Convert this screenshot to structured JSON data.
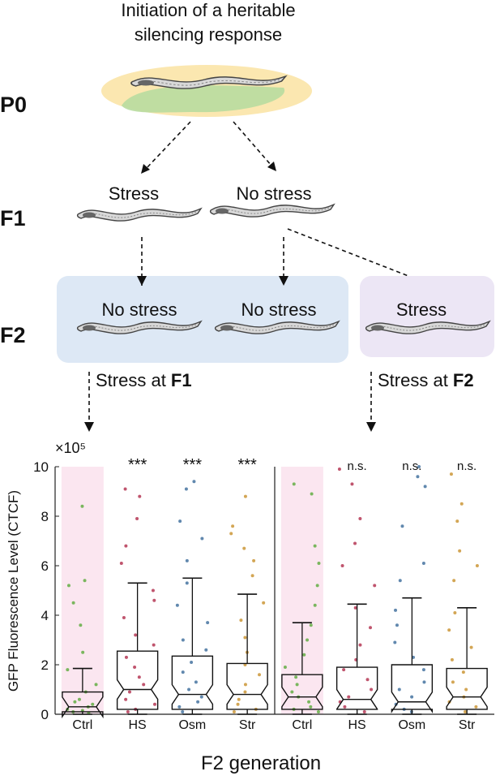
{
  "diagram": {
    "title_lines": [
      "Initiation of a heritable",
      "silencing response"
    ],
    "generations": [
      "P0",
      "F1",
      "F2"
    ],
    "f1_conditions": [
      "Stress",
      "No stress"
    ],
    "f2_conditions": [
      "No stress",
      "No stress",
      "Stress"
    ],
    "outcomes": [
      {
        "text": "Stress at ",
        "bold": "F1"
      },
      {
        "text": "Stress at ",
        "bold": "F2"
      }
    ]
  },
  "chart_data": {
    "type": "box",
    "ylabel": "GFP Fluorescence Level (CTCF)",
    "xlabel": "F2 generation",
    "y_multiplier_label": "×10⁵",
    "ylim": [
      0,
      10
    ],
    "yticks": [
      0,
      2,
      4,
      6,
      8,
      10
    ],
    "categories": [
      "Ctrl",
      "HS",
      "Osm",
      "Str",
      "Ctrl",
      "HS",
      "Osm",
      "Str"
    ],
    "annotations": [
      null,
      "***",
      "***",
      "***",
      null,
      "n.s.",
      "n.s.",
      "n.s."
    ],
    "highlight_categories": [
      0,
      4
    ],
    "highlight_color": "#fbe6f0",
    "separator_after": 3,
    "boxes": [
      {
        "color": "#5aaa3a",
        "whisker_low": 0,
        "q1": 0.1,
        "median": 0.3,
        "q3": 0.9,
        "whisker_high": 1.85,
        "points": [
          8.4,
          5.4,
          5.2,
          4.5,
          3.6,
          2.5,
          1.8,
          1.2,
          0.9,
          0.6,
          0.5,
          0.4,
          0.3,
          0.2,
          0.15,
          0.1,
          0.05
        ]
      },
      {
        "color": "#b02a4a",
        "whisker_low": 0,
        "q1": 0.2,
        "median": 1.0,
        "q3": 2.55,
        "whisker_high": 5.3,
        "points": [
          9.1,
          8.8,
          7.9,
          6.8,
          6.1,
          5.0,
          4.6,
          3.9,
          3.2,
          2.8,
          2.3,
          1.9,
          1.5,
          1.2,
          0.9,
          0.6,
          0.4,
          0.2,
          0.1
        ]
      },
      {
        "color": "#3a6a9a",
        "whisker_low": 0,
        "q1": 0.2,
        "median": 0.8,
        "q3": 2.35,
        "whisker_high": 5.5,
        "points": [
          9.4,
          9.1,
          7.8,
          7.1,
          6.2,
          5.3,
          4.4,
          3.7,
          3.0,
          2.6,
          2.1,
          1.7,
          1.3,
          1.0,
          0.7,
          0.5,
          0.3,
          0.1
        ]
      },
      {
        "color": "#c8902a",
        "whisker_low": 0,
        "q1": 0.2,
        "median": 0.8,
        "q3": 2.05,
        "whisker_high": 4.85,
        "points": [
          8.8,
          7.6,
          7.3,
          6.7,
          6.2,
          5.6,
          4.5,
          3.8,
          3.1,
          2.5,
          2.0,
          1.6,
          1.2,
          0.9,
          0.6,
          0.4,
          0.2,
          0.1
        ]
      },
      {
        "color": "#5aaa3a",
        "whisker_low": 0,
        "q1": 0.2,
        "median": 0.7,
        "q3": 1.6,
        "whisker_high": 3.7,
        "points": [
          9.3,
          8.9,
          6.8,
          6.1,
          5.2,
          4.4,
          3.6,
          3.0,
          2.4,
          1.9,
          1.5,
          1.2,
          0.9,
          0.7,
          0.5,
          0.3,
          0.2,
          0.1
        ]
      },
      {
        "color": "#b02a4a",
        "whisker_low": 0,
        "q1": 0.2,
        "median": 0.6,
        "q3": 1.9,
        "whisker_high": 4.45,
        "points": [
          9.9,
          9.3,
          7.9,
          6.9,
          6.0,
          5.2,
          4.3,
          3.5,
          2.8,
          2.2,
          1.8,
          1.4,
          1.0,
          0.7,
          0.5,
          0.3,
          0.1
        ]
      },
      {
        "color": "#3a6a9a",
        "whisker_low": 0,
        "q1": 0.2,
        "median": 0.5,
        "q3": 2.0,
        "whisker_high": 4.7,
        "points": [
          10.0,
          9.6,
          9.2,
          7.6,
          6.1,
          5.4,
          4.2,
          3.6,
          2.9,
          2.3,
          1.8,
          1.3,
          1.0,
          0.7,
          0.4,
          0.2,
          0.1
        ]
      },
      {
        "color": "#c8902a",
        "whisker_low": 0,
        "q1": 0.2,
        "median": 0.7,
        "q3": 1.85,
        "whisker_high": 4.3,
        "points": [
          9.7,
          8.5,
          7.8,
          6.6,
          6.0,
          5.4,
          4.1,
          3.4,
          2.7,
          2.2,
          1.7,
          1.3,
          1.0,
          0.7,
          0.5,
          0.3,
          0.1
        ]
      }
    ]
  }
}
